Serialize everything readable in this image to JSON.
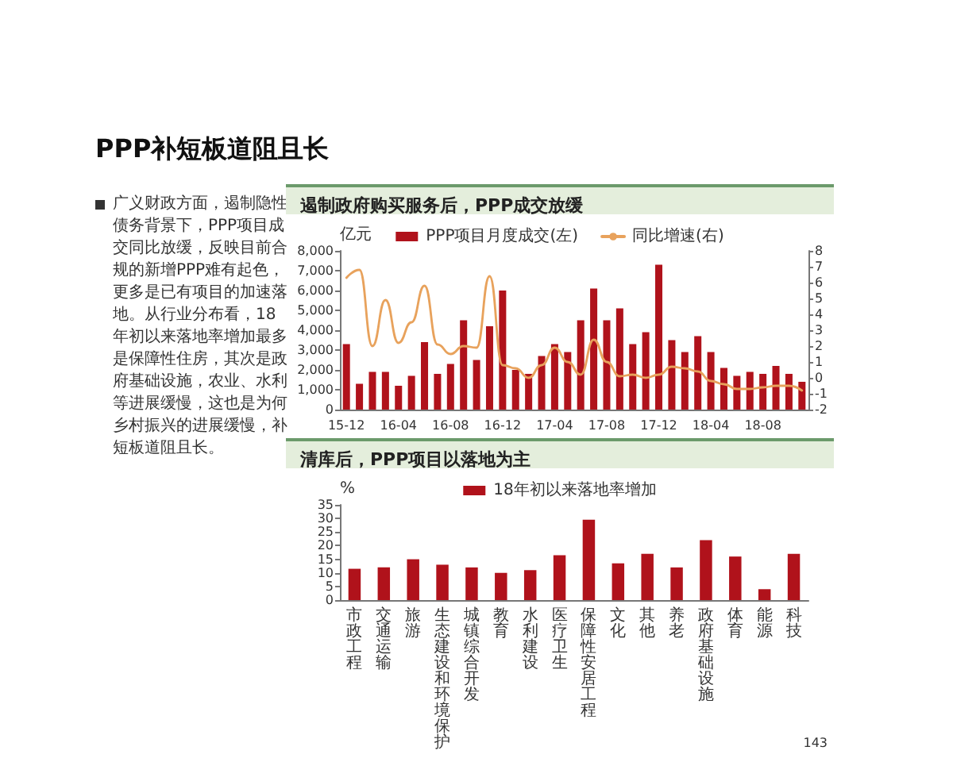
{
  "chart_data": [
    {
      "type": "other",
      "title": "PPP补短板道阻且长",
      "annotations": [
        "广义财政方面，遏制隐性债务背景下，PPP项目成交同比放缓，反映目前合规的新增PPP难有起色，更多是已有项目的加速落地。从行业分布看，18年初以来落地率增加最多是保障性住房，其次是政府基础设施，农业、水利等进展缓慢，这也是为何乡村振兴的进展缓慢，补短板道阻且长。"
      ]
    },
    {
      "type": "bar",
      "title": "遏制政府购买服务后，PPP成交放缓",
      "ylabel": "亿元",
      "legend": "top",
      "marker": "none",
      "categories": [
        "15-12",
        null,
        null,
        null,
        "16-04",
        null,
        null,
        null,
        "16-08",
        null,
        null,
        null,
        "16-12",
        null,
        null,
        null,
        "17-04",
        null,
        null,
        null,
        "17-08",
        null,
        null,
        null,
        "17-12",
        null,
        null,
        null,
        "18-04",
        null,
        null,
        null,
        "18-08",
        null,
        null,
        null
      ],
      "series": [
        {
          "type": "bar",
          "name": "PPP项目月度成交(左)",
          "color": "#b0121b",
          "values": [
            3300,
            1300,
            1900,
            1900,
            1200,
            1700,
            3400,
            1800,
            2300,
            4500,
            2500,
            4200,
            6000,
            2000,
            1800,
            2700,
            3300,
            2900,
            4500,
            6100,
            4500,
            5100,
            3300,
            3900,
            7300,
            3500,
            2900,
            3700,
            2900,
            2100,
            1700,
            1900,
            1800,
            2200,
            1800,
            1400
          ]
        },
        {
          "type": "line",
          "name": "同比增速(右)",
          "color": "#e8a25c",
          "axis": "y2",
          "values": [
            6.3,
            6.8,
            2.0,
            4.9,
            2.2,
            3.5,
            5.8,
            2.1,
            1.5,
            2.0,
            1.9,
            6.4,
            0.8,
            0.6,
            0.0,
            0.8,
            1.9,
            1.0,
            0.2,
            2.4,
            1.0,
            0.1,
            0.2,
            0.0,
            0.2,
            0.7,
            0.6,
            0.4,
            -0.2,
            -0.4,
            -0.7,
            -0.7,
            -0.6,
            -0.5,
            -0.5,
            -0.8
          ]
        }
      ],
      "ylim": [
        0,
        8000
      ],
      "yticks": [
        0,
        {
          "value": 1000,
          "label": "1,000"
        },
        {
          "value": 2000,
          "label": "2,000"
        },
        {
          "value": 3000,
          "label": "3,000"
        },
        {
          "value": 4000,
          "label": "4,000"
        },
        {
          "value": 5000,
          "label": "5,000"
        },
        {
          "value": 6000,
          "label": "6,000"
        },
        {
          "value": 7000,
          "label": "7,000"
        },
        {
          "value": 8000,
          "label": "8,000"
        }
      ],
      "y2lim": [
        -2,
        8
      ],
      "y2ticks": [
        -2,
        -1,
        0,
        1,
        2,
        3,
        4,
        5,
        6,
        7,
        8
      ]
    },
    {
      "type": "bar",
      "title": "清库后，PPP项目以落地为主",
      "ylabel": "%",
      "legend": "top",
      "categories": [
        "市政工程",
        "交通运输",
        "旅游",
        "生态建设和环境保护",
        "城镇综合开发",
        "教育",
        "水利建设",
        "医疗卫生",
        "保障性安居工程",
        "文化",
        "其他",
        "养老",
        "政府基础设施",
        "体育",
        "能源",
        "科技"
      ],
      "series": [
        {
          "name": "18年初以来落地率增加",
          "color": "#b0121b",
          "values": [
            11.5,
            12,
            15,
            13,
            12,
            10,
            11,
            16.5,
            29.5,
            13.5,
            17,
            12,
            22,
            16,
            4,
            17
          ]
        }
      ],
      "ylim": [
        0,
        35
      ],
      "yticks": [
        0,
        5,
        10,
        15,
        20,
        25,
        30,
        35
      ],
      "annotations": [
        "143"
      ]
    }
  ]
}
